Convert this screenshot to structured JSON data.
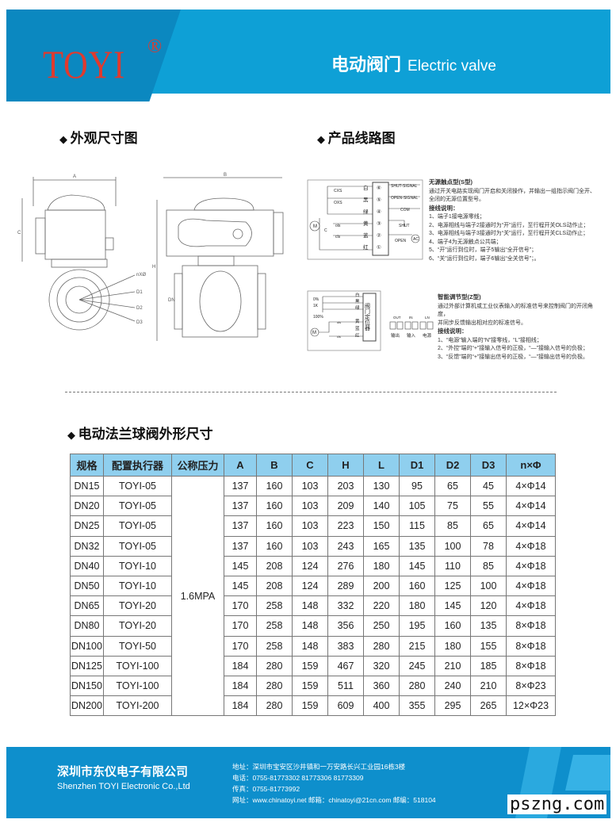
{
  "header": {
    "logo": "TOYI",
    "registered": "®",
    "title_cn": "电动阀门",
    "title_en": "Electric valve",
    "colors": {
      "dark": "#0b88c0",
      "light": "#0ea0d6",
      "logo": "#e03a2e"
    }
  },
  "sections": {
    "appearance": "外观尺寸图",
    "wiring": "产品线路图",
    "table_title": "电动法兰球阀外形尺寸"
  },
  "drawing_labels": {
    "A": "A",
    "B": "B",
    "C": "C",
    "H": "H",
    "DN": "DN",
    "nxo": "nXØ",
    "D1": "D1",
    "D2": "D2",
    "D3": "D3"
  },
  "wiring_s": {
    "terminals": [
      "⑥",
      "⑤",
      "④",
      "③",
      "②",
      "①"
    ],
    "colors": [
      "白",
      "黑",
      "绿",
      "黄",
      "蓝",
      "红"
    ],
    "signals": [
      "SHUT-SIGNAL",
      "OPEN-SIGNAL",
      "COM"
    ],
    "labels": {
      "cxs": "CXS",
      "oxs": "OXS",
      "ols": "ols",
      "cls": "cls",
      "m": "M",
      "c": "C",
      "shut": "SHUT",
      "open": "OPEN",
      "ac": "AC"
    },
    "title": "无源触点型(S型)",
    "desc": [
      "通过开关电路实现阀门开启和关闭操作，并输出一组指示阀门全开、",
      "全闭的无源位置型号。"
    ],
    "howto": "接线说明：",
    "steps": [
      "1、端子1接电源零线；",
      "2、电源相线与端子2接通时为“开”运行，至行程开关OLS动作止；",
      "3、电源相线与端子3接通时为“关”运行，至行程开关CLS动作止；",
      "4、端子4为无源触点公共端；",
      "5、“开”运行到位时，端子5输出“全开信号”；",
      "6、“关”运行到位时，端子6输出“全关信号”；。"
    ]
  },
  "wiring_z": {
    "colors": [
      "白",
      "黑",
      "绿",
      "黄",
      "蓝",
      "红"
    ],
    "positioner": "阀门定位器",
    "labels": {
      "p0": "0%",
      "r": "1K",
      "p100": "100%",
      "m": "M",
      "ols": "ols",
      "cls": "cls"
    },
    "ports": [
      "OUT",
      "IN",
      "LN"
    ],
    "port_names": [
      "输出",
      "输入",
      "电源"
    ],
    "title": "智能调节型(Z型)",
    "desc": [
      "通过外部计算机或工业仪表输入的标准信号来控制阀门的开闭角度，",
      "并同步反馈输出相对应的标准信号。"
    ],
    "howto": "接线说明：",
    "steps": [
      "1、“电源”输入端的“N”接零线，“L”接相线；",
      "2、“外控”端的“+”接输入信号的正极，“—”接输入信号的负极；",
      "3、“反馈”端的“+”接输出信号的正极，“—”接输出信号的负极。"
    ]
  },
  "table": {
    "header_bg": "#8fcfee",
    "columns": [
      "规格",
      "配置执行器",
      "公称压力",
      "A",
      "B",
      "C",
      "H",
      "L",
      "D1",
      "D2",
      "D3",
      "n×Φ"
    ],
    "pressure": "1.6MPA",
    "rows": [
      [
        "DN15",
        "TOYI-05",
        "137",
        "160",
        "103",
        "203",
        "130",
        "95",
        "65",
        "45",
        "4×Φ14"
      ],
      [
        "DN20",
        "TOYI-05",
        "137",
        "160",
        "103",
        "209",
        "140",
        "105",
        "75",
        "55",
        "4×Φ14"
      ],
      [
        "DN25",
        "TOYI-05",
        "137",
        "160",
        "103",
        "223",
        "150",
        "115",
        "85",
        "65",
        "4×Φ14"
      ],
      [
        "DN32",
        "TOYI-05",
        "137",
        "160",
        "103",
        "243",
        "165",
        "135",
        "100",
        "78",
        "4×Φ18"
      ],
      [
        "DN40",
        "TOYI-10",
        "145",
        "208",
        "124",
        "276",
        "180",
        "145",
        "110",
        "85",
        "4×Φ18"
      ],
      [
        "DN50",
        "TOYI-10",
        "145",
        "208",
        "124",
        "289",
        "200",
        "160",
        "125",
        "100",
        "4×Φ18"
      ],
      [
        "DN65",
        "TOYI-20",
        "170",
        "258",
        "148",
        "332",
        "220",
        "180",
        "145",
        "120",
        "4×Φ18"
      ],
      [
        "DN80",
        "TOYI-20",
        "170",
        "258",
        "148",
        "356",
        "250",
        "195",
        "160",
        "135",
        "8×Φ18"
      ],
      [
        "DN100",
        "TOYI-50",
        "170",
        "258",
        "148",
        "383",
        "280",
        "215",
        "180",
        "155",
        "8×Φ18"
      ],
      [
        "DN125",
        "TOYI-100",
        "184",
        "280",
        "159",
        "467",
        "320",
        "245",
        "210",
        "185",
        "8×Φ18"
      ],
      [
        "DN150",
        "TOYI-100",
        "184",
        "280",
        "159",
        "511",
        "360",
        "280",
        "240",
        "210",
        "8×Φ23"
      ],
      [
        "DN200",
        "TOYI-200",
        "184",
        "280",
        "159",
        "609",
        "400",
        "355",
        "295",
        "265",
        "12×Φ23"
      ]
    ]
  },
  "footer": {
    "company_cn": "深圳市东仪电子有限公司",
    "company_en": "Shenzhen TOYI Electronic Co.,Ltd",
    "address": "地址：深圳市宝安区沙井镇和一万安路长兴工业园16栋3楼",
    "phone": "电话：0755-81773302 81773306 81773309",
    "fax": "传真：0755-81773992",
    "web": "网址：www.chinatoyi.net  邮箱：chinatoyi@21cn.com  邮编：518104",
    "bg": "#0e8fcc"
  },
  "watermark": "pszng.com"
}
